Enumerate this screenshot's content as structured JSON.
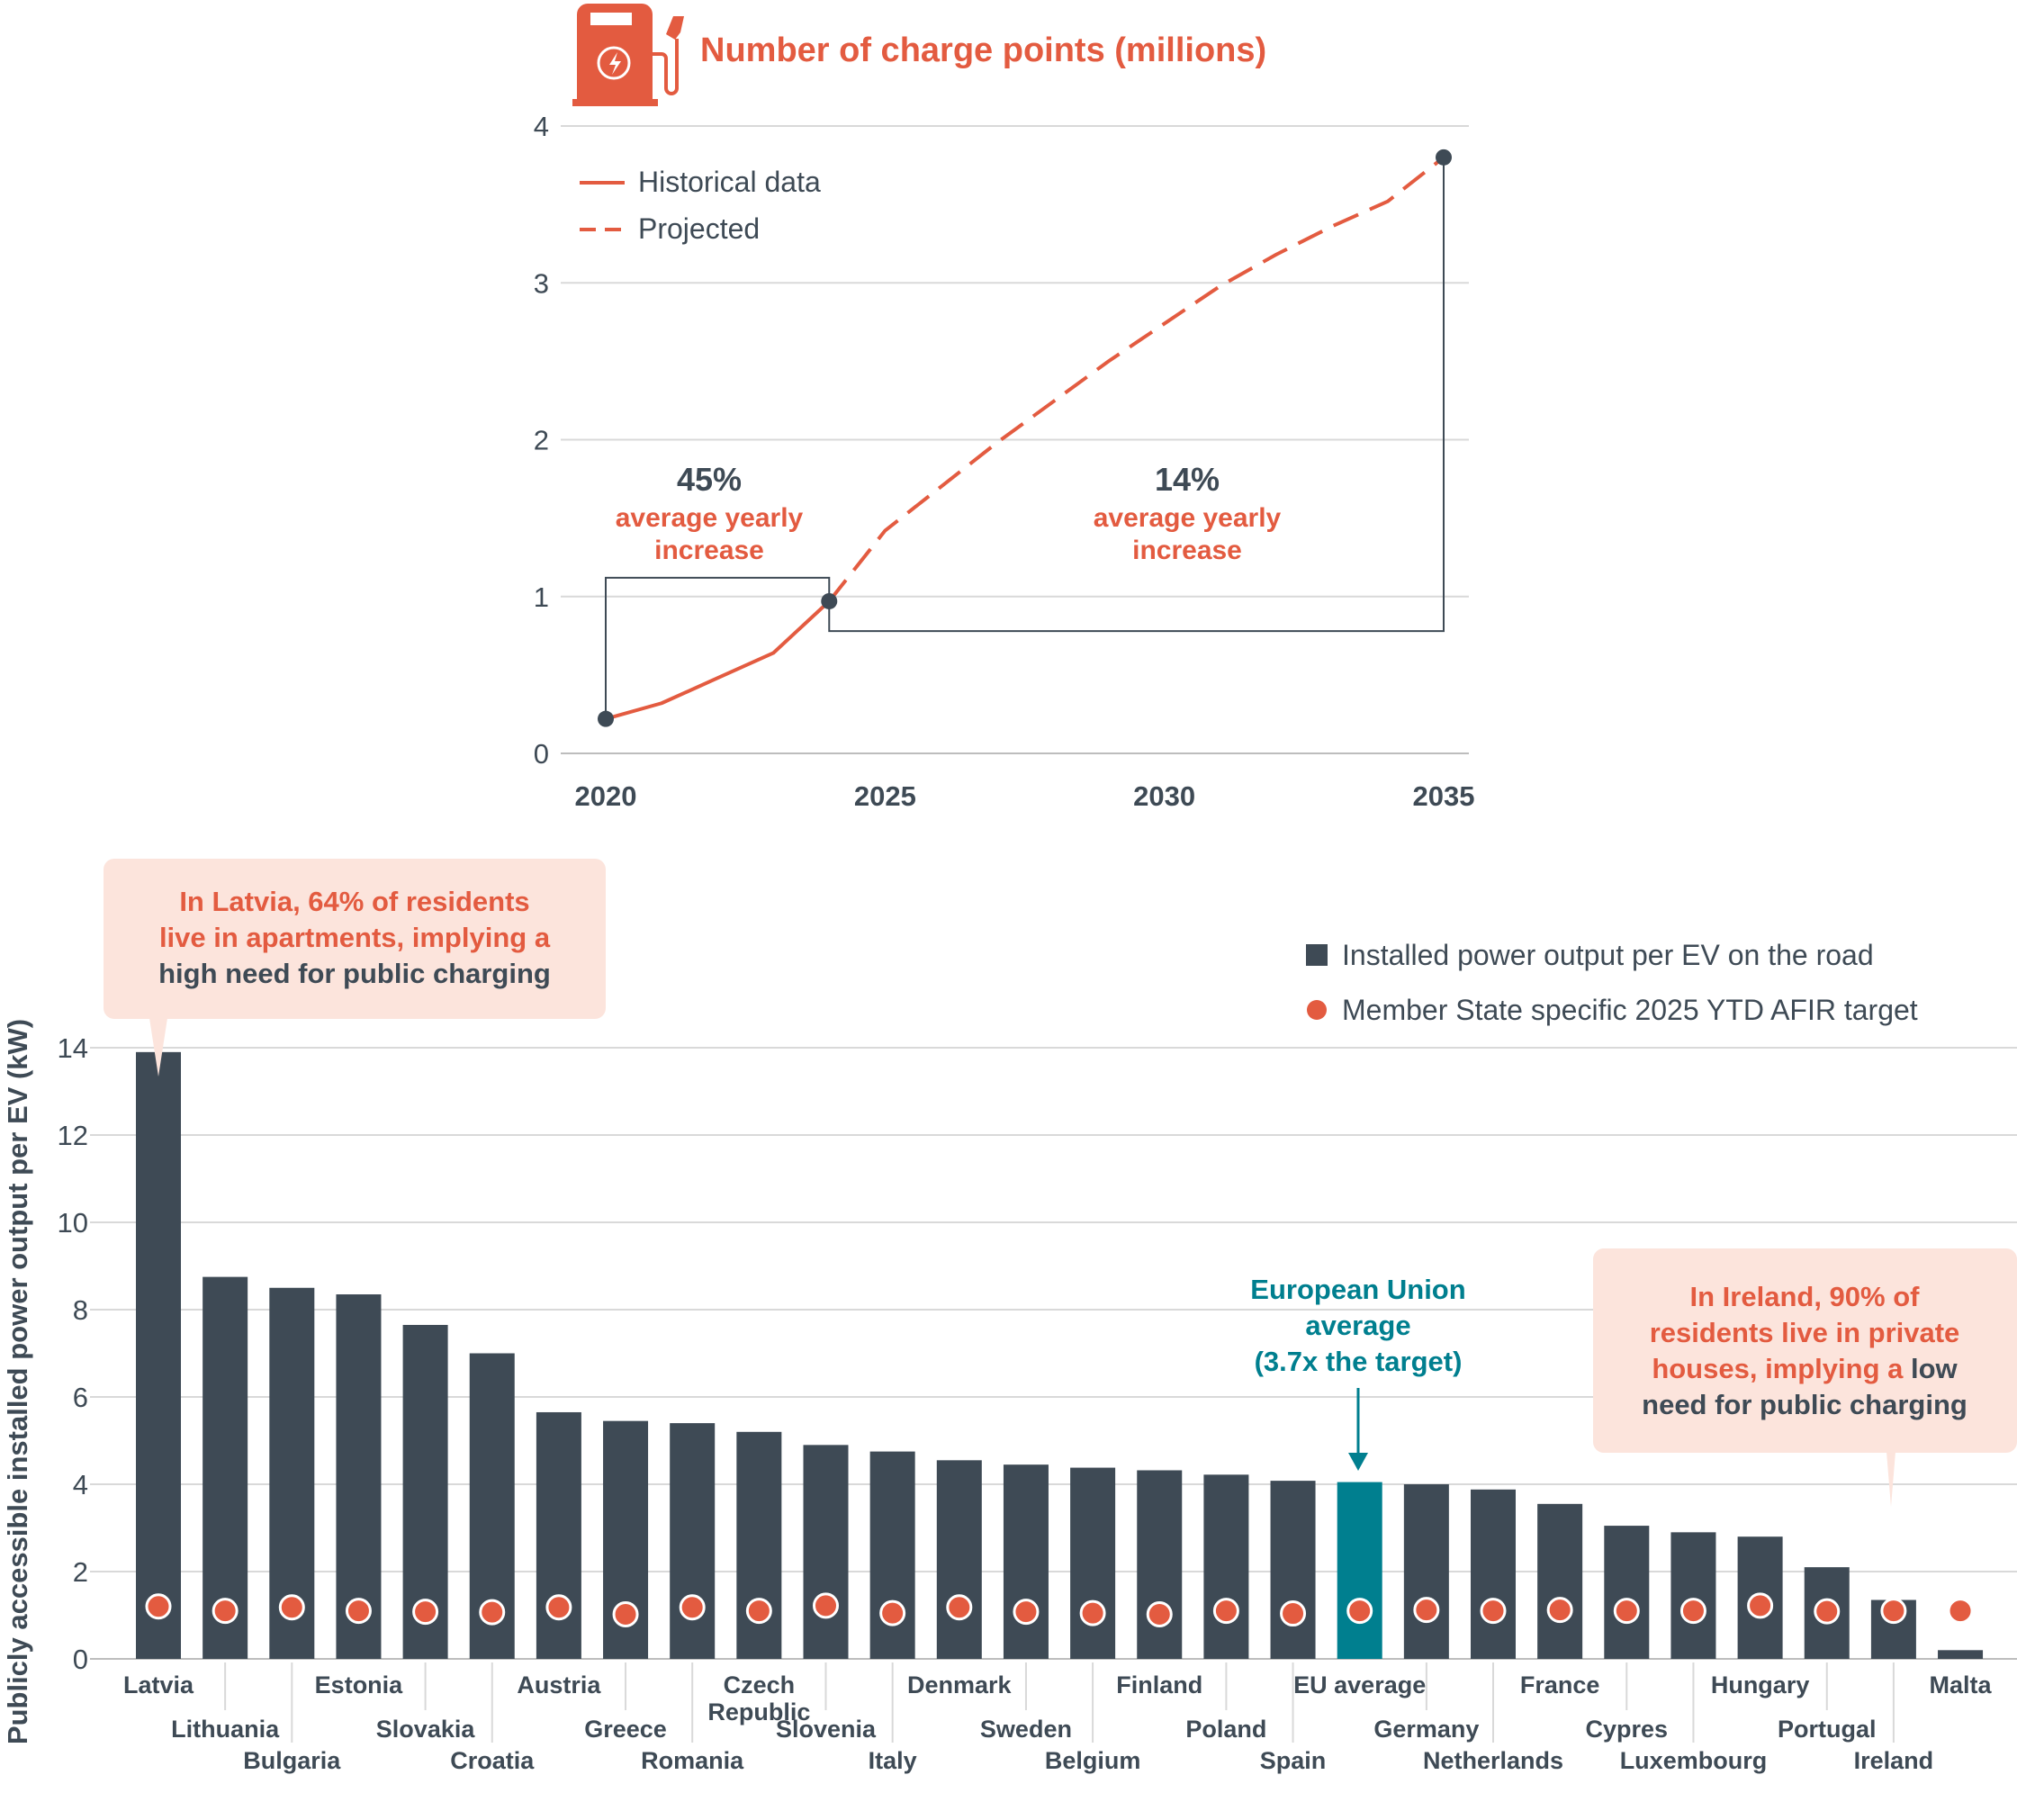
{
  "colors": {
    "accent": "#e35b40",
    "dark": "#3e4a55",
    "eu_teal": "#007f8f",
    "callout_bg": "#fce4dc",
    "grid": "#d9d9d9",
    "text": "#3e4a55"
  },
  "icons": {
    "top_chart": "ev-charging-station-icon"
  },
  "chart_data": [
    {
      "type": "line",
      "title": "Number of charge points (millions)",
      "xlim": [
        2020,
        2035
      ],
      "ylim": [
        0,
        4
      ],
      "x_ticks": [
        "2020",
        "2025",
        "2030",
        "2035"
      ],
      "y_ticks": [
        "0",
        "1",
        "2",
        "3",
        "4"
      ],
      "grid": "horizontal",
      "legend_position": "top-left",
      "series": [
        {
          "name": "Historical data",
          "style": "solid",
          "x": [
            2020,
            2021,
            2022,
            2023,
            2024
          ],
          "y": [
            0.22,
            0.32,
            0.48,
            0.64,
            0.97
          ]
        },
        {
          "name": "Projected",
          "style": "dashed",
          "x": [
            2024,
            2025,
            2026,
            2027,
            2028,
            2029,
            2030,
            2031,
            2032,
            2033,
            2034,
            2035
          ],
          "y": [
            0.97,
            1.42,
            1.7,
            1.98,
            2.24,
            2.5,
            2.74,
            2.98,
            3.18,
            3.36,
            3.52,
            3.8
          ]
        }
      ],
      "markers": [
        {
          "x": 2020,
          "y": 0.22
        },
        {
          "x": 2024,
          "y": 0.97
        },
        {
          "x": 2035,
          "y": 3.8
        }
      ],
      "annotations": [
        {
          "pct": "45%",
          "line1": "average yearly",
          "line2": "increase",
          "from": 2020,
          "to": 2024
        },
        {
          "pct": "14%",
          "line1": "average yearly",
          "line2": "increase",
          "from": 2024,
          "to": 2035
        }
      ]
    },
    {
      "type": "bar",
      "ylabel": "Publicly accessible installed power output per EV (kW)",
      "ylim": [
        0,
        14
      ],
      "y_ticks": [
        "0",
        "2",
        "4",
        "6",
        "8",
        "10",
        "12",
        "14"
      ],
      "grid": "horizontal",
      "legend_position": "top-right",
      "legend": {
        "bars": "Installed power output per EV on the road",
        "dots": "Member State specific 2025 YTD AFIR target"
      },
      "categories": [
        "Latvia",
        "Lithuania",
        "Bulgaria",
        "Estonia",
        "Slovakia",
        "Croatia",
        "Austria",
        "Greece",
        "Romania",
        "Czech Republic",
        "Slovenia",
        "Italy",
        "Denmark",
        "Sweden",
        "Belgium",
        "Finland",
        "Poland",
        "Spain",
        "EU average",
        "Germany",
        "Netherlands",
        "France",
        "Cypres",
        "Luxembourg",
        "Hungary",
        "Portugal",
        "Ireland",
        "Malta"
      ],
      "label_row": [
        0,
        1,
        2,
        0,
        1,
        2,
        0,
        1,
        2,
        0,
        1,
        2,
        0,
        1,
        2,
        0,
        1,
        2,
        0,
        1,
        2,
        0,
        1,
        2,
        0,
        1,
        2,
        0
      ],
      "series": [
        {
          "name": "Installed power output per EV on the road",
          "values": [
            13.9,
            8.75,
            8.5,
            8.35,
            7.65,
            7.0,
            5.65,
            5.45,
            5.4,
            5.2,
            4.9,
            4.75,
            4.55,
            4.45,
            4.38,
            4.32,
            4.22,
            4.08,
            4.05,
            4.0,
            3.88,
            3.55,
            3.05,
            2.9,
            2.8,
            2.1,
            1.35,
            0.2
          ]
        },
        {
          "name": "Member State specific 2025 YTD AFIR target",
          "values": [
            1.2,
            1.1,
            1.18,
            1.1,
            1.08,
            1.07,
            1.18,
            1.02,
            1.18,
            1.1,
            1.22,
            1.05,
            1.18,
            1.08,
            1.05,
            1.02,
            1.1,
            1.04,
            1.1,
            1.12,
            1.1,
            1.12,
            1.1,
            1.1,
            1.22,
            1.09,
            1.1,
            1.1
          ]
        }
      ],
      "highlight_category": "EU average",
      "annotations": {
        "latvia": {
          "line1": "In Latvia, 64% of residents",
          "line2": "live in apartments, implying a",
          "line3": "high need for public charging"
        },
        "eu": {
          "line1": "European Union",
          "line2": "average",
          "line3": "(3.7x the target)"
        },
        "ireland": {
          "line1": "In Ireland, 90% of",
          "line2": "residents live in private",
          "line3a": "houses, implying a ",
          "line3b": "low",
          "line4": "need for public charging"
        }
      }
    }
  ]
}
